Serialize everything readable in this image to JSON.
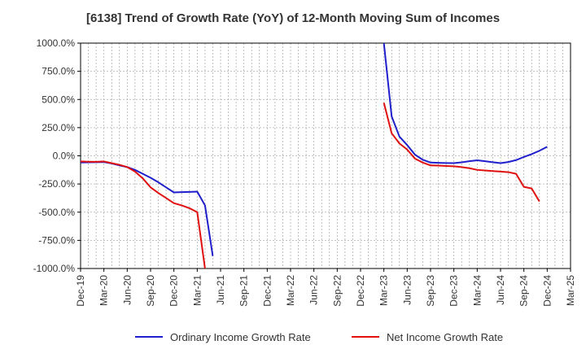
{
  "chart_data": {
    "type": "line",
    "title": "[6138]  Trend of Growth Rate (YoY) of 12-Month Moving Sum of Incomes",
    "xlabel": "",
    "ylabel": "",
    "ylim": [
      -1000,
      1000
    ],
    "y_ticks": [
      1000,
      750,
      500,
      250,
      0,
      -250,
      -500,
      -750,
      -1000
    ],
    "y_tick_labels": [
      "1000.0%",
      "750.0%",
      "500.0%",
      "250.0%",
      "0.0%",
      "-250.0%",
      "-500.0%",
      "-750.0%",
      "-1000.0%"
    ],
    "x_tick_labels": [
      "Dec-19",
      "Mar-20",
      "Jun-20",
      "Sep-20",
      "Dec-20",
      "Mar-21",
      "Jun-21",
      "Sep-21",
      "Dec-21",
      "Mar-22",
      "Jun-22",
      "Sep-22",
      "Dec-22",
      "Mar-23",
      "Jun-23",
      "Sep-23",
      "Dec-23",
      "Mar-24",
      "Jun-24",
      "Sep-24",
      "Dec-24",
      "Mar-25"
    ],
    "x_start": "Dec-19",
    "grid": true,
    "legend_position": "bottom",
    "series": [
      {
        "name": "Ordinary Income Growth Rate",
        "color": "#1f1fcc",
        "points": [
          {
            "x": "Dec-19",
            "y": -60
          },
          {
            "x": "Jan-20",
            "y": -58
          },
          {
            "x": "Feb-20",
            "y": -57
          },
          {
            "x": "Mar-20",
            "y": -55
          },
          {
            "x": "Apr-20",
            "y": -68
          },
          {
            "x": "May-20",
            "y": -85
          },
          {
            "x": "Jun-20",
            "y": -100
          },
          {
            "x": "Jul-20",
            "y": -125
          },
          {
            "x": "Aug-20",
            "y": -160
          },
          {
            "x": "Sep-20",
            "y": -195
          },
          {
            "x": "Oct-20",
            "y": -235
          },
          {
            "x": "Nov-20",
            "y": -280
          },
          {
            "x": "Dec-20",
            "y": -325
          },
          {
            "x": "Jan-21",
            "y": -322
          },
          {
            "x": "Feb-21",
            "y": -320
          },
          {
            "x": "Mar-21",
            "y": -318
          },
          {
            "x": "Apr-21",
            "y": -440
          },
          {
            "x": "May-21",
            "y": -890
          }
        ],
        "points_2": [
          {
            "x": "Mar-23",
            "y": 1000
          },
          {
            "x": "Apr-23",
            "y": 350
          },
          {
            "x": "May-23",
            "y": 170
          },
          {
            "x": "Jun-23",
            "y": 95
          },
          {
            "x": "Jul-23",
            "y": 10
          },
          {
            "x": "Aug-23",
            "y": -35
          },
          {
            "x": "Sep-23",
            "y": -60
          },
          {
            "x": "Oct-23",
            "y": -62
          },
          {
            "x": "Nov-23",
            "y": -64
          },
          {
            "x": "Dec-23",
            "y": -65
          },
          {
            "x": "Jan-24",
            "y": -58
          },
          {
            "x": "Feb-24",
            "y": -48
          },
          {
            "x": "Mar-24",
            "y": -40
          },
          {
            "x": "Apr-24",
            "y": -48
          },
          {
            "x": "May-24",
            "y": -57
          },
          {
            "x": "Jun-24",
            "y": -65
          },
          {
            "x": "Jul-24",
            "y": -55
          },
          {
            "x": "Aug-24",
            "y": -38
          },
          {
            "x": "Sep-24",
            "y": -10
          },
          {
            "x": "Oct-24",
            "y": 15
          },
          {
            "x": "Nov-24",
            "y": 45
          },
          {
            "x": "Dec-24",
            "y": 80
          }
        ]
      },
      {
        "name": "Net Income Growth Rate",
        "color": "#e01010",
        "points": [
          {
            "x": "Dec-19",
            "y": -50
          },
          {
            "x": "Jan-20",
            "y": -52
          },
          {
            "x": "Feb-20",
            "y": -53
          },
          {
            "x": "Mar-20",
            "y": -50
          },
          {
            "x": "Apr-20",
            "y": -65
          },
          {
            "x": "May-20",
            "y": -80
          },
          {
            "x": "Jun-20",
            "y": -100
          },
          {
            "x": "Jul-20",
            "y": -140
          },
          {
            "x": "Aug-20",
            "y": -200
          },
          {
            "x": "Sep-20",
            "y": -280
          },
          {
            "x": "Oct-20",
            "y": -330
          },
          {
            "x": "Nov-20",
            "y": -375
          },
          {
            "x": "Dec-20",
            "y": -420
          },
          {
            "x": "Jan-21",
            "y": -440
          },
          {
            "x": "Feb-21",
            "y": -465
          },
          {
            "x": "Mar-21",
            "y": -500
          },
          {
            "x": "Apr-21",
            "y": -1000
          }
        ],
        "points_2": [
          {
            "x": "Mar-23",
            "y": 470
          },
          {
            "x": "Apr-23",
            "y": 200
          },
          {
            "x": "May-23",
            "y": 110
          },
          {
            "x": "Jun-23",
            "y": 55
          },
          {
            "x": "Jul-23",
            "y": -25
          },
          {
            "x": "Aug-23",
            "y": -60
          },
          {
            "x": "Sep-23",
            "y": -85
          },
          {
            "x": "Oct-23",
            "y": -87
          },
          {
            "x": "Nov-23",
            "y": -90
          },
          {
            "x": "Dec-23",
            "y": -93
          },
          {
            "x": "Jan-24",
            "y": -100
          },
          {
            "x": "Feb-24",
            "y": -110
          },
          {
            "x": "Mar-24",
            "y": -125
          },
          {
            "x": "Apr-24",
            "y": -130
          },
          {
            "x": "May-24",
            "y": -135
          },
          {
            "x": "Jun-24",
            "y": -140
          },
          {
            "x": "Jul-24",
            "y": -145
          },
          {
            "x": "Aug-24",
            "y": -160
          },
          {
            "x": "Sep-24",
            "y": -275
          },
          {
            "x": "Oct-24",
            "y": -290
          },
          {
            "x": "Nov-24",
            "y": -405
          }
        ]
      }
    ]
  }
}
